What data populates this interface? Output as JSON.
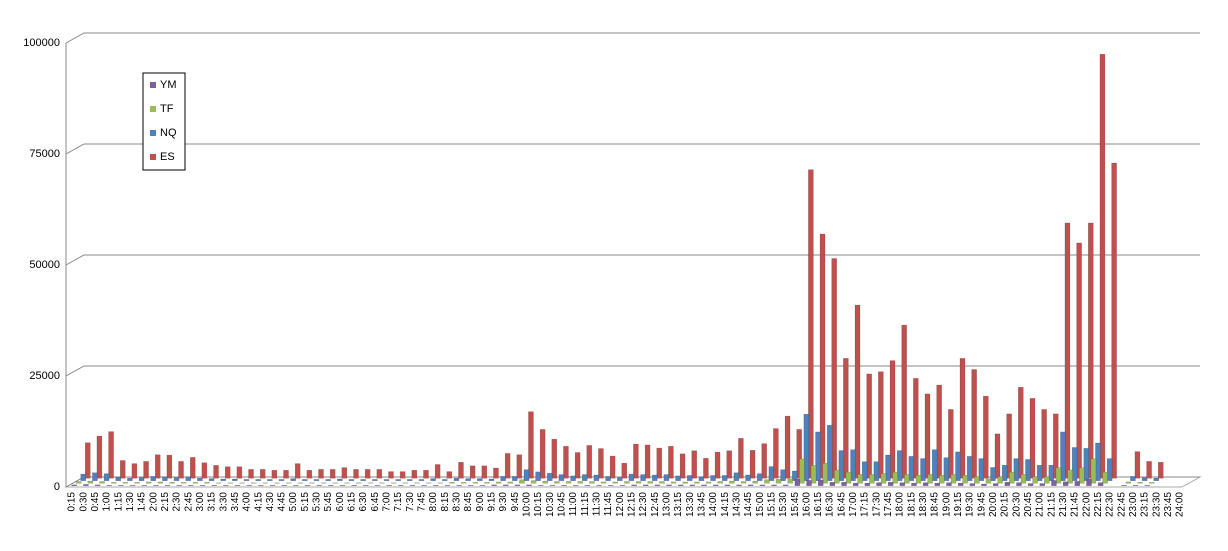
{
  "chart_data": {
    "type": "bar3d",
    "categories": [
      "0:15",
      "0:30",
      "0:45",
      "1:00",
      "1:15",
      "1:30",
      "1:45",
      "2:00",
      "2:15",
      "2:30",
      "2:45",
      "3:00",
      "3:15",
      "3:30",
      "3:45",
      "4:00",
      "4:15",
      "4:30",
      "4:45",
      "5:00",
      "5:15",
      "5:30",
      "5:45",
      "6:00",
      "6:15",
      "6:30",
      "6:45",
      "7:00",
      "7:15",
      "7:30",
      "7:45",
      "8:00",
      "8:15",
      "8:30",
      "8:45",
      "9:00",
      "9:15",
      "9:30",
      "9:45",
      "10:00",
      "10:15",
      "10:30",
      "10:45",
      "11:00",
      "11:15",
      "11:30",
      "11:45",
      "12:00",
      "12:15",
      "12:30",
      "12:45",
      "13:00",
      "13:15",
      "13:30",
      "13:45",
      "14:00",
      "14:15",
      "14:30",
      "14:45",
      "15:00",
      "15:15",
      "15:30",
      "15:45",
      "16:00",
      "16:15",
      "16:30",
      "16:45",
      "17:00",
      "17:15",
      "17:30",
      "17:45",
      "18:00",
      "18:15",
      "18:30",
      "18:45",
      "19:00",
      "19:15",
      "19:30",
      "19:45",
      "20:00",
      "20:15",
      "20:30",
      "20:45",
      "21:00",
      "21:15",
      "21:30",
      "21:45",
      "22:00",
      "22:15",
      "22:30",
      "22:45",
      "23:00",
      "23:15",
      "23:30",
      "23:45",
      "24:00"
    ],
    "series": [
      {
        "name": "YM",
        "color": "#7d60a0",
        "values": [
          200,
          300,
          200,
          100,
          100,
          100,
          100,
          100,
          100,
          100,
          100,
          100,
          100,
          100,
          100,
          100,
          100,
          100,
          100,
          100,
          100,
          100,
          100,
          100,
          100,
          100,
          100,
          100,
          100,
          100,
          100,
          100,
          100,
          100,
          100,
          100,
          200,
          200,
          200,
          200,
          100,
          100,
          100,
          100,
          100,
          100,
          100,
          100,
          200,
          200,
          200,
          200,
          200,
          200,
          200,
          200,
          200,
          200,
          200,
          200,
          200,
          200,
          1500,
          1200,
          1300,
          800,
          800,
          600,
          600,
          700,
          800,
          700,
          600,
          700,
          600,
          700,
          600,
          500,
          400,
          500,
          800,
          700,
          500,
          500,
          1200,
          900,
          1000,
          1500,
          700,
          0,
          100,
          100,
          100,
          0,
          0,
          0
        ]
      },
      {
        "name": "TF",
        "color": "#9bbb59",
        "values": [
          400,
          500,
          400,
          200,
          200,
          200,
          300,
          300,
          200,
          200,
          200,
          200,
          100,
          100,
          100,
          100,
          100,
          100,
          100,
          100,
          100,
          100,
          100,
          100,
          100,
          100,
          100,
          100,
          100,
          100,
          100,
          100,
          200,
          200,
          200,
          200,
          300,
          300,
          800,
          600,
          500,
          400,
          400,
          400,
          400,
          300,
          300,
          400,
          400,
          400,
          400,
          300,
          300,
          300,
          300,
          400,
          500,
          400,
          500,
          800,
          900,
          1000,
          5500,
          4000,
          4500,
          3000,
          2500,
          2000,
          2000,
          2200,
          2500,
          2000,
          1800,
          2000,
          1800,
          2000,
          1800,
          1500,
          1000,
          1500,
          2500,
          2000,
          1500,
          1500,
          3500,
          3000,
          3500,
          5500,
          2500,
          0,
          300,
          200,
          200,
          0,
          0,
          0
        ]
      },
      {
        "name": "NQ",
        "color": "#4f81bd",
        "values": [
          1500,
          1800,
          1600,
          800,
          600,
          700,
          1000,
          900,
          700,
          900,
          600,
          500,
          400,
          400,
          300,
          300,
          300,
          300,
          500,
          300,
          300,
          300,
          400,
          300,
          300,
          300,
          300,
          300,
          300,
          300,
          500,
          300,
          600,
          500,
          500,
          400,
          1000,
          1000,
          2500,
          2000,
          1700,
          1400,
          1100,
          1400,
          1300,
          1000,
          700,
          1500,
          1400,
          1300,
          1400,
          1100,
          1200,
          900,
          1200,
          1200,
          1800,
          1300,
          1600,
          3200,
          2500,
          2200,
          15000,
          11000,
          12500,
          6800,
          7000,
          4300,
          4300,
          5800,
          6800,
          5500,
          5000,
          7000,
          5200,
          6500,
          5500,
          5000,
          3000,
          3500,
          5000,
          4800,
          3500,
          3500,
          11000,
          7500,
          7300,
          8500,
          5000,
          0,
          1000,
          700,
          600,
          0,
          0,
          0
        ]
      },
      {
        "name": "ES",
        "color": "#c0504d",
        "values": [
          8000,
          9500,
          10500,
          4000,
          3300,
          3800,
          5300,
          5200,
          3800,
          4700,
          3500,
          2900,
          2600,
          2600,
          2000,
          2000,
          1800,
          1800,
          3300,
          1800,
          2000,
          2000,
          2400,
          2000,
          2000,
          2000,
          1500,
          1500,
          1800,
          1800,
          3100,
          1500,
          3600,
          2800,
          2800,
          2300,
          5600,
          5300,
          15000,
          11000,
          8800,
          7200,
          5800,
          7400,
          6700,
          5000,
          3400,
          7700,
          7500,
          6800,
          7200,
          5500,
          6200,
          4500,
          5900,
          6200,
          9000,
          6300,
          7800,
          11200,
          14000,
          11000,
          69500,
          55000,
          49500,
          27000,
          39000,
          23500,
          24000,
          26500,
          34500,
          22500,
          19000,
          21000,
          15500,
          27000,
          24500,
          18500,
          10000,
          14500,
          20500,
          18000,
          15500,
          14500,
          57500,
          53000,
          57500,
          95500,
          71000,
          0,
          6000,
          3800,
          3600,
          0,
          0,
          0
        ]
      }
    ],
    "ylim": [
      0,
      100000
    ],
    "yticks": [
      0,
      25000,
      50000,
      75000,
      100000
    ],
    "grid": true
  }
}
